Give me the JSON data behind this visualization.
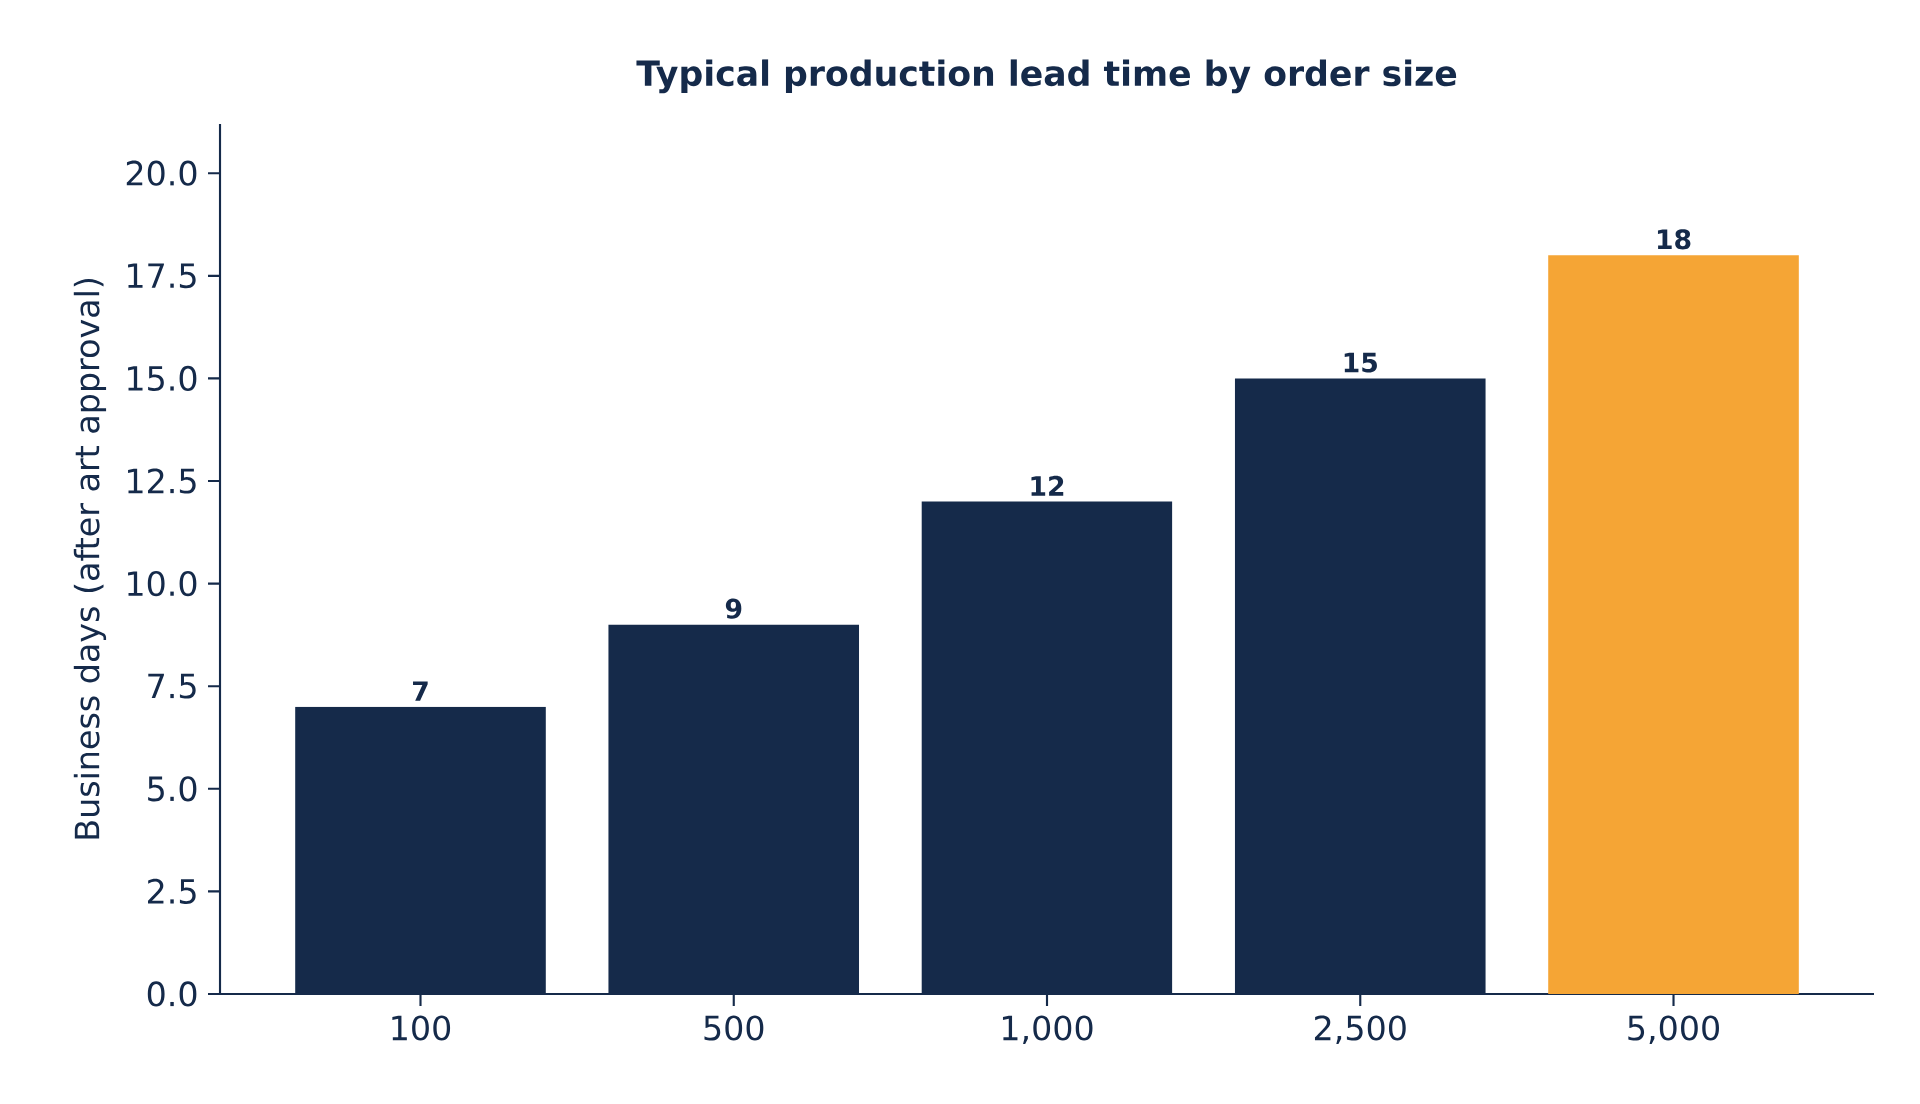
{
  "chart_data": {
    "type": "bar",
    "title": "Typical production lead time by order size",
    "ylabel": "Business days (after art approval)",
    "categories": [
      "100",
      "500",
      "1,000",
      "2,500",
      "5,000"
    ],
    "values": [
      7,
      9,
      12,
      15,
      18
    ],
    "colors": [
      "#152a4a",
      "#152a4a",
      "#152a4a",
      "#152a4a",
      "#f5a535"
    ],
    "ylim": [
      0,
      21.2
    ],
    "yticks": [
      {
        "value": 0,
        "label": "0.0"
      },
      {
        "value": 2.5,
        "label": "2.5"
      },
      {
        "value": 5,
        "label": "5.0"
      },
      {
        "value": 7.5,
        "label": "7.5"
      },
      {
        "value": 10,
        "label": "10.0"
      },
      {
        "value": 12.5,
        "label": "12.5"
      },
      {
        "value": 15,
        "label": "15.0"
      },
      {
        "value": 17.5,
        "label": "17.5"
      },
      {
        "value": 20,
        "label": "20.0"
      }
    ],
    "data_labels": true,
    "grid": false
  }
}
